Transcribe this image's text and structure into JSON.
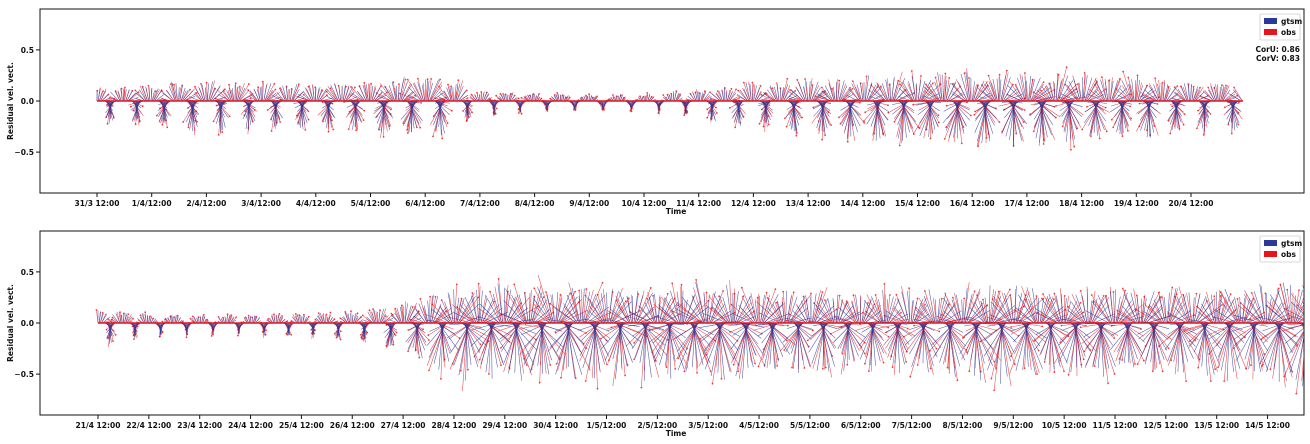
{
  "chart_data": [
    {
      "type": "quiver",
      "ylabel": "Residual vel. vect.",
      "xlabel": "Time",
      "ylim": [
        -0.9,
        0.9
      ],
      "yticks": [
        0.5,
        0.0,
        -0.5
      ],
      "ytick_labels": [
        "0.5",
        "0.0",
        "−0.5"
      ],
      "xtick_labels": [
        "31/3 12:00",
        "1/4/12:00",
        "2/4/12:00",
        "3/4/12:00",
        "4/4/12:00",
        "5/4/12:00",
        "6/4/12:00",
        "7/4/12:00",
        "8/4/12:00",
        "9/4/12:00",
        "10/4 12:00",
        "11/4 12:00",
        "12/4 12:00",
        "13/4 12:00",
        "14/4 12:00",
        "15/4 12:00",
        "16/4 12:00",
        "17/4 12:00",
        "18/4 12:00",
        "19/4 12:00",
        "20/4 12:00"
      ],
      "legend": {
        "placement": "top-right",
        "entries": [
          {
            "name": "gtsm",
            "color": "#2b3a99"
          },
          {
            "name": "obs",
            "color": "#e8141c"
          }
        ]
      },
      "stats": [
        "CorU: 0.86",
        "CorV: 0.83"
      ],
      "amplitude": [
        0.2,
        0.26,
        0.3,
        0.28,
        0.27,
        0.32,
        0.4,
        0.15,
        0.12,
        0.1,
        0.1,
        0.18,
        0.28,
        0.33,
        0.38,
        0.42,
        0.43,
        0.43,
        0.4,
        0.37,
        0.3
      ]
    },
    {
      "type": "quiver",
      "ylabel": "Residual vel. vect.",
      "xlabel": "Time",
      "ylim": [
        -0.9,
        0.9
      ],
      "yticks": [
        0.5,
        0.0,
        -0.5
      ],
      "ytick_labels": [
        "0.5",
        "0.0",
        "−0.5"
      ],
      "xtick_labels": [
        "21/4 12:00",
        "22/4 12:00",
        "23/4 12:00",
        "24/4 12:00",
        "25/4 12:00",
        "26/4 12:00",
        "27/4 12:00",
        "28/4 12:00",
        "29/4 12:00",
        "30/4 12:00",
        "1/5/12:00",
        "2/5/12:00",
        "3/5/12:00",
        "4/5/12:00",
        "5/5/12:00",
        "6/5/12:00",
        "7/5/12:00",
        "8/5/12:00",
        "9/5/12:00",
        "10/5 12:00",
        "11/5 12:00",
        "12/5 12:00",
        "13/5 12:00",
        "14/5 12:00"
      ],
      "legend": {
        "placement": "top-right",
        "entries": [
          {
            "name": "gtsm",
            "color": "#2b3a99"
          },
          {
            "name": "obs",
            "color": "#e8141c"
          }
        ]
      },
      "stats": [],
      "amplitude": [
        0.22,
        0.14,
        0.12,
        0.12,
        0.14,
        0.17,
        0.3,
        0.55,
        0.6,
        0.6,
        0.58,
        0.55,
        0.6,
        0.55,
        0.5,
        0.48,
        0.5,
        0.55,
        0.58,
        0.55,
        0.55,
        0.52,
        0.55,
        0.6
      ]
    }
  ]
}
